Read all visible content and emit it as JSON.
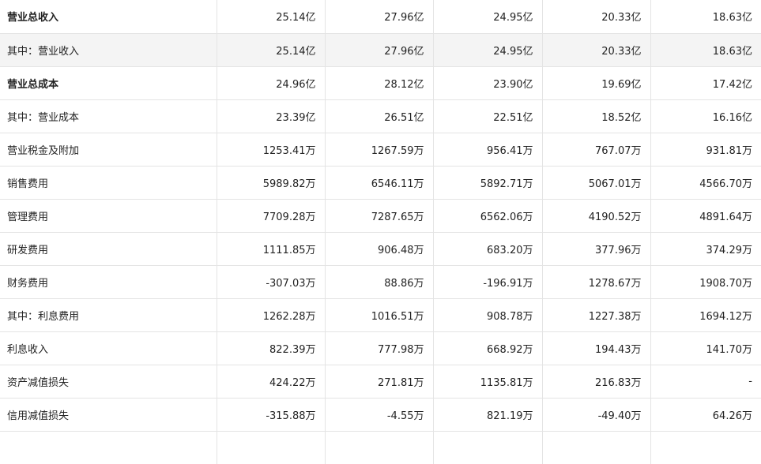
{
  "table": {
    "rows": [
      {
        "label": "营业总收入",
        "bold": true,
        "shaded": false,
        "values": [
          "25.14亿",
          "27.96亿",
          "24.95亿",
          "20.33亿",
          "18.63亿"
        ]
      },
      {
        "label": "其中：营业收入",
        "bold": false,
        "shaded": true,
        "values": [
          "25.14亿",
          "27.96亿",
          "24.95亿",
          "20.33亿",
          "18.63亿"
        ]
      },
      {
        "label": "营业总成本",
        "bold": true,
        "shaded": false,
        "values": [
          "24.96亿",
          "28.12亿",
          "23.90亿",
          "19.69亿",
          "17.42亿"
        ]
      },
      {
        "label": "其中：营业成本",
        "bold": false,
        "shaded": false,
        "values": [
          "23.39亿",
          "26.51亿",
          "22.51亿",
          "18.52亿",
          "16.16亿"
        ]
      },
      {
        "label": "营业税金及附加",
        "bold": false,
        "shaded": false,
        "values": [
          "1253.41万",
          "1267.59万",
          "956.41万",
          "767.07万",
          "931.81万"
        ]
      },
      {
        "label": "销售费用",
        "bold": false,
        "shaded": false,
        "values": [
          "5989.82万",
          "6546.11万",
          "5892.71万",
          "5067.01万",
          "4566.70万"
        ]
      },
      {
        "label": "管理费用",
        "bold": false,
        "shaded": false,
        "values": [
          "7709.28万",
          "7287.65万",
          "6562.06万",
          "4190.52万",
          "4891.64万"
        ]
      },
      {
        "label": "研发费用",
        "bold": false,
        "shaded": false,
        "values": [
          "1111.85万",
          "906.48万",
          "683.20万",
          "377.96万",
          "374.29万"
        ]
      },
      {
        "label": "财务费用",
        "bold": false,
        "shaded": false,
        "values": [
          "-307.03万",
          "88.86万",
          "-196.91万",
          "1278.67万",
          "1908.70万"
        ]
      },
      {
        "label": "其中：利息费用",
        "bold": false,
        "shaded": false,
        "values": [
          "1262.28万",
          "1016.51万",
          "908.78万",
          "1227.38万",
          "1694.12万"
        ]
      },
      {
        "label": "利息收入",
        "bold": false,
        "shaded": false,
        "values": [
          "822.39万",
          "777.98万",
          "668.92万",
          "194.43万",
          "141.70万"
        ]
      },
      {
        "label": "资产减值损失",
        "bold": false,
        "shaded": false,
        "values": [
          "424.22万",
          "271.81万",
          "1135.81万",
          "216.83万",
          "-"
        ]
      },
      {
        "label": "信用减值损失",
        "bold": false,
        "shaded": false,
        "values": [
          "-315.88万",
          "-4.55万",
          "821.19万",
          "-49.40万",
          "64.26万"
        ]
      }
    ]
  }
}
